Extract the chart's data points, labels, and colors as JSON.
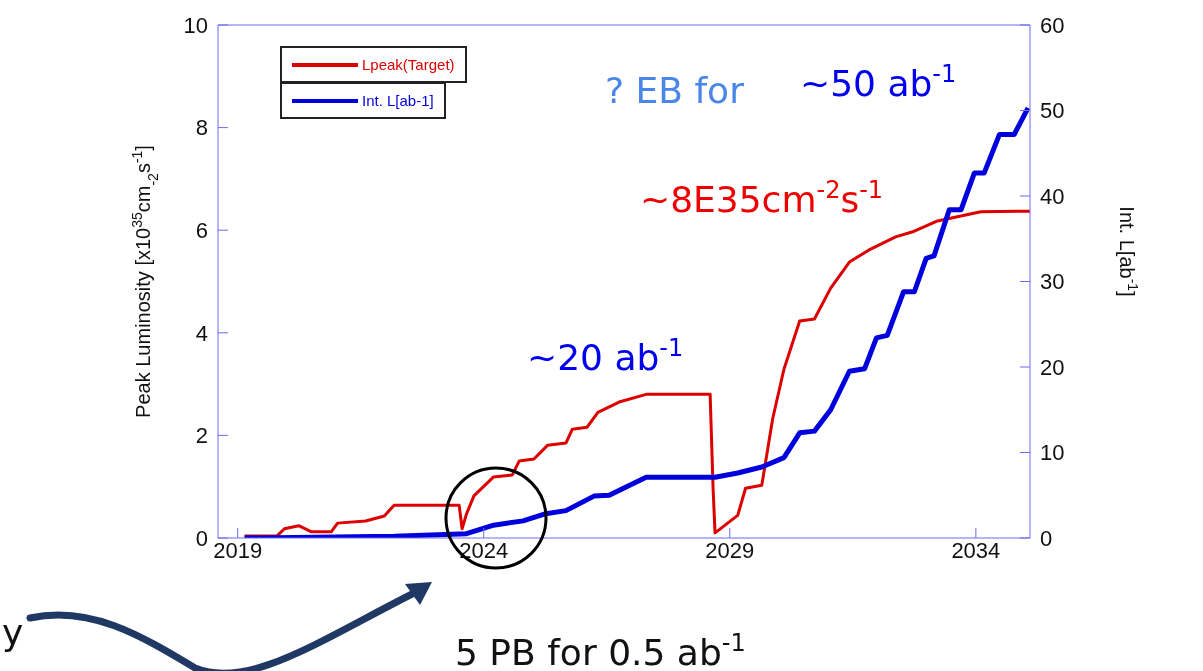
{
  "chart_data": {
    "type": "line",
    "ylabel": "Peak Luminosity [x10$^{35}$cm$_{-2}$s$^{-1}$]",
    "y2label": "Int. L[ab$^{-1}$]",
    "xlim": [
      2018.6,
      2035.1
    ],
    "xticks": [
      2019,
      2024,
      2029,
      2034
    ],
    "ylim": [
      0,
      10
    ],
    "yticks": [
      0,
      2,
      4,
      6,
      8,
      10
    ],
    "y2lim": [
      0,
      60
    ],
    "y2ticks": [
      0,
      10,
      20,
      30,
      40,
      50,
      60
    ],
    "grid": false,
    "legend": "top left",
    "marker": "none",
    "line_style": "solid",
    "series": [
      {
        "name": "Lpeak(Target)",
        "color": "#dd0000",
        "x": [
          2019.14,
          2019.8,
          2019.95,
          2020.24,
          2020.5,
          2020.9,
          2021.03,
          2021.6,
          2021.98,
          2022.18,
          2023.5,
          2023.56,
          2023.65,
          2023.8,
          2024.2,
          2024.58,
          2024.72,
          2025.02,
          2025.3,
          2025.67,
          2025.8,
          2026.1,
          2026.32,
          2026.75,
          2027.3,
          2028.6,
          2028.66,
          2028.7,
          2029.16,
          2029.32,
          2029.65,
          2029.87,
          2030.1,
          2030.42,
          2030.72,
          2031.05,
          2031.43,
          2031.82,
          2032.37,
          2032.75,
          2033.22,
          2034.1,
          2035.1
        ],
        "values": [
          0.04,
          0.04,
          0.18,
          0.24,
          0.12,
          0.12,
          0.29,
          0.33,
          0.43,
          0.64,
          0.64,
          0.18,
          0.47,
          0.82,
          1.19,
          1.23,
          1.5,
          1.54,
          1.81,
          1.85,
          2.12,
          2.16,
          2.45,
          2.65,
          2.8,
          2.8,
          0.97,
          0.1,
          0.44,
          0.97,
          1.03,
          2.32,
          3.29,
          4.23,
          4.27,
          4.87,
          5.38,
          5.61,
          5.87,
          5.98,
          6.18,
          6.36,
          6.37
        ]
      },
      {
        "name": "Int. L[ab-1]",
        "color": "#0000dd",
        "axis": "y2",
        "x": [
          2019.14,
          2022.18,
          2023.65,
          2024.2,
          2024.8,
          2025.23,
          2025.67,
          2026.24,
          2026.55,
          2026.83,
          2027.3,
          2028.7,
          2029.16,
          2029.65,
          2030.1,
          2030.42,
          2030.72,
          2031.05,
          2031.43,
          2031.74,
          2031.98,
          2032.2,
          2032.53,
          2032.75,
          2032.99,
          2033.15,
          2033.46,
          2033.7,
          2033.97,
          2034.17,
          2034.48,
          2034.78,
          2035.06
        ],
        "values": [
          0,
          0.2,
          0.5,
          1.5,
          2,
          2.8,
          3.2,
          4.9,
          5,
          5.8,
          7.1,
          7.1,
          7.6,
          8.3,
          9.4,
          12.3,
          12.5,
          15,
          19.5,
          19.8,
          23.4,
          23.7,
          28.8,
          28.8,
          32.7,
          33,
          38.4,
          38.4,
          42.7,
          42.7,
          47.2,
          47.2,
          50.3
        ]
      }
    ],
    "annotations": [
      "? EB for",
      "~50 ab$^{-1}$",
      "~8E35cm$^{-2}$s$^{-1}$",
      "~20 ab$^{-1}$",
      "5 PB for 0.5 ab$^{-1}$",
      "y"
    ]
  }
}
